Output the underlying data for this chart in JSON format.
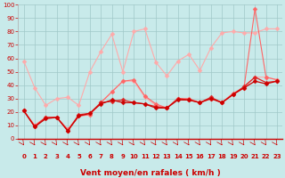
{
  "x": [
    0,
    1,
    2,
    3,
    4,
    5,
    6,
    7,
    8,
    9,
    10,
    11,
    12,
    13,
    14,
    15,
    16,
    17,
    18,
    19,
    20,
    21,
    22,
    23
  ],
  "series": [
    {
      "color": "#ffaaaa",
      "lw": 0.8,
      "y": [
        58,
        38,
        25,
        30,
        31,
        25,
        50,
        65,
        78,
        50,
        80,
        82,
        57,
        47,
        58,
        63,
        51,
        68,
        79,
        80,
        79,
        79,
        82,
        82
      ]
    },
    {
      "color": "#ffaaaa",
      "lw": 0.8,
      "y": [
        21,
        10,
        16,
        16,
        7,
        17,
        18,
        27,
        35,
        43,
        43,
        31,
        25,
        23,
        30,
        29,
        27,
        30,
        27,
        33,
        38,
        46,
        46,
        44
      ]
    },
    {
      "color": "#ff6666",
      "lw": 0.8,
      "y": [
        21,
        10,
        16,
        16,
        7,
        17,
        18,
        27,
        35,
        43,
        44,
        32,
        26,
        23,
        30,
        30,
        27,
        30,
        27,
        34,
        38,
        97,
        46,
        44
      ]
    },
    {
      "color": "#dd2222",
      "lw": 0.9,
      "y": [
        21,
        9,
        16,
        16,
        6,
        18,
        19,
        27,
        28,
        29,
        27,
        26,
        24,
        23,
        30,
        29,
        27,
        31,
        27,
        33,
        39,
        46,
        42,
        43
      ]
    },
    {
      "color": "#cc0000",
      "lw": 0.9,
      "y": [
        21,
        9,
        15,
        16,
        6,
        17,
        19,
        26,
        29,
        27,
        27,
        26,
        23,
        23,
        29,
        29,
        27,
        30,
        27,
        33,
        38,
        43,
        41,
        43
      ]
    }
  ],
  "xlabel": "Vent moyen/en rafales ( km/h )",
  "xlim_min": -0.5,
  "xlim_max": 23.5,
  "ylim": [
    0,
    100
  ],
  "yticks": [
    0,
    10,
    20,
    30,
    40,
    50,
    60,
    70,
    80,
    90,
    100
  ],
  "xticks": [
    0,
    1,
    2,
    3,
    4,
    5,
    6,
    7,
    8,
    9,
    10,
    11,
    12,
    13,
    14,
    15,
    16,
    17,
    18,
    19,
    20,
    21,
    22,
    23
  ],
  "bg_color": "#c8eaea",
  "grid_color": "#a0c8c8",
  "marker": "D",
  "marker_size": 2.5,
  "tick_color": "#cc0000",
  "xlabel_color": "#cc0000",
  "tick_fontsize": 5,
  "xlabel_fontsize": 6.5
}
